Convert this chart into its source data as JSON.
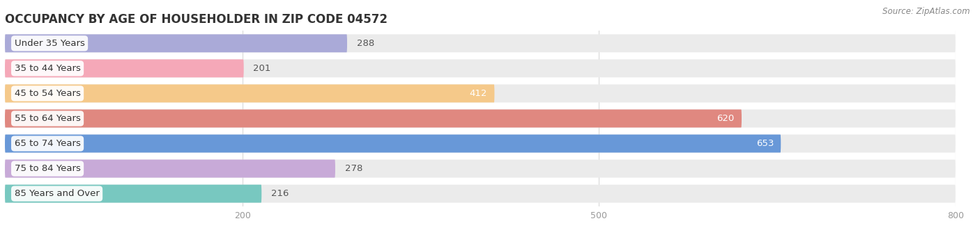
{
  "title": "OCCUPANCY BY AGE OF HOUSEHOLDER IN ZIP CODE 04572",
  "source": "Source: ZipAtlas.com",
  "categories": [
    "Under 35 Years",
    "35 to 44 Years",
    "45 to 54 Years",
    "55 to 64 Years",
    "65 to 74 Years",
    "75 to 84 Years",
    "85 Years and Over"
  ],
  "values": [
    288,
    201,
    412,
    620,
    653,
    278,
    216
  ],
  "bar_colors": [
    "#aaaad8",
    "#f5a8b8",
    "#f5c98a",
    "#e08880",
    "#6898d8",
    "#c8aad8",
    "#78c8c0"
  ],
  "bar_bg_color": "#ebebeb",
  "xlim_data": [
    0,
    800
  ],
  "xticks": [
    200,
    500,
    800
  ],
  "background_color": "#ffffff",
  "title_fontsize": 12,
  "bar_height": 0.72,
  "label_fontsize": 9.5,
  "value_fontsize": 9.5,
  "grid_color": "#d8d8d8",
  "text_color": "#555555",
  "source_color": "#888888"
}
